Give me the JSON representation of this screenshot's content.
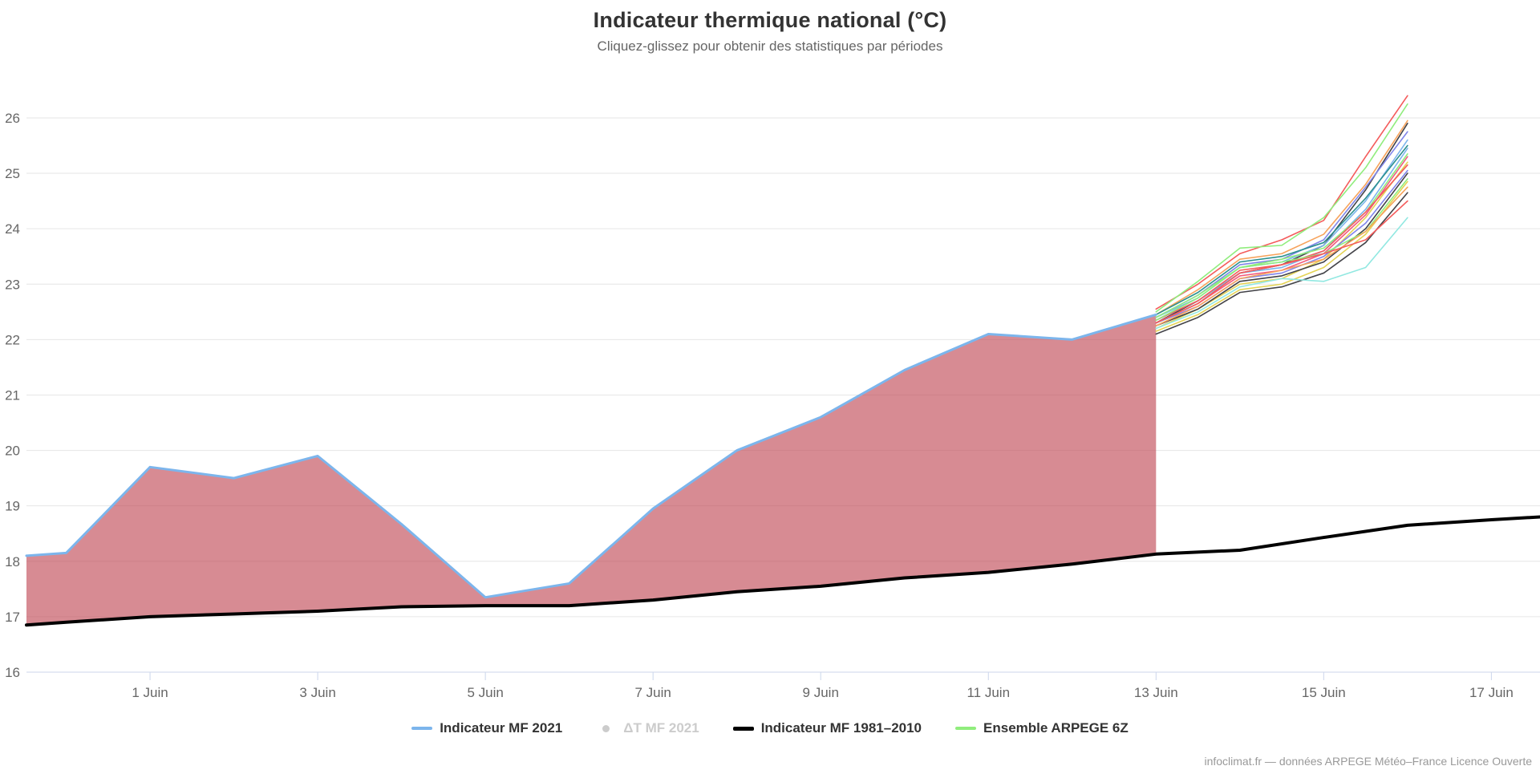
{
  "page": {
    "title": "Indicateur thermique national (°C)",
    "subtitle": "Cliquez-glissez pour obtenir des statistiques par périodes",
    "credit": "infoclimat.fr — données ARPEGE Météo–France Licence Ouverte"
  },
  "legend": {
    "items": [
      {
        "label": "Indicateur MF 2021",
        "color": "#7cb5ec",
        "marker": "line",
        "text_color": "#333333",
        "disabled": false
      },
      {
        "label": "ΔT MF 2021",
        "color": "#cccccc",
        "marker": "dot",
        "text_color": "#cccccc",
        "disabled": true
      },
      {
        "label": "Indicateur MF 1981–2010",
        "color": "#000000",
        "marker": "line-bold",
        "text_color": "#333333",
        "disabled": false
      },
      {
        "label": "Ensemble ARPEGE 6Z",
        "color": "#90ed7d",
        "marker": "line",
        "text_color": "#333333",
        "disabled": false
      }
    ]
  },
  "chart_data": {
    "type": "line",
    "title": "Indicateur thermique national (°C)",
    "subtitle": "Cliquez-glissez pour obtenir des statistiques par périodes",
    "x_axis": {
      "unit": "day of June (0 = 31 Mai)",
      "min_day": -0.474,
      "max_day": 17.58,
      "ticks": [
        {
          "day": 1,
          "label": "1 Juin"
        },
        {
          "day": 3,
          "label": "3 Juin"
        },
        {
          "day": 5,
          "label": "5 Juin"
        },
        {
          "day": 7,
          "label": "7 Juin"
        },
        {
          "day": 9,
          "label": "9 Juin"
        },
        {
          "day": 11,
          "label": "11 Juin"
        },
        {
          "day": 13,
          "label": "13 Juin"
        },
        {
          "day": 15,
          "label": "15 Juin"
        },
        {
          "day": 17,
          "label": "17 Juin"
        }
      ]
    },
    "y_axis": {
      "min": 16,
      "max": 26.853,
      "ticks": [
        16,
        17,
        18,
        19,
        20,
        21,
        22,
        23,
        24,
        25,
        26
      ],
      "gridlines": [
        17,
        18,
        19,
        20,
        21,
        22,
        23,
        24,
        25,
        26
      ],
      "grid_color": "#e6e6e6",
      "axis_line_color": "#ccd6eb",
      "label_color": "#666666"
    },
    "series": [
      {
        "name": "Indicateur MF 2021",
        "color": "#7cb5ec",
        "width": 3,
        "x": [
          -0.474,
          0,
          1,
          2,
          3,
          4,
          5,
          6,
          7,
          8,
          9,
          10,
          11,
          12,
          13
        ],
        "y": [
          18.1,
          18.15,
          19.7,
          19.5,
          19.9,
          18.67,
          17.35,
          17.6,
          18.95,
          20.0,
          20.6,
          21.45,
          22.1,
          22.0,
          22.45
        ]
      },
      {
        "name": "Indicateur MF 1981–2010",
        "color": "#000000",
        "width": 4,
        "x": [
          -0.474,
          0,
          1,
          2,
          3,
          4,
          5,
          6,
          7,
          8,
          9,
          10,
          11,
          12,
          13,
          14,
          15,
          16,
          17,
          17.58
        ],
        "y": [
          16.85,
          16.9,
          17.0,
          17.05,
          17.1,
          17.18,
          17.2,
          17.2,
          17.3,
          17.45,
          17.55,
          17.7,
          17.8,
          17.95,
          18.13,
          18.2,
          18.43,
          18.65,
          18.75,
          18.8
        ]
      }
    ],
    "area_between": {
      "upper": "Indicateur MF 2021",
      "lower": "Indicateur MF 1981–2010",
      "from_day": -0.474,
      "to_day": 13,
      "fill": "rgba(191,72,84,0.63)"
    },
    "ensemble": {
      "name": "Ensemble ARPEGE 6Z",
      "line_width": 1.6,
      "x": [
        13,
        13.5,
        14,
        14.5,
        15,
        15.5,
        16
      ],
      "members": [
        {
          "color": "#f45b5b",
          "values": [
            22.55,
            23.0,
            23.55,
            23.8,
            24.15,
            25.3,
            26.4
          ]
        },
        {
          "color": "#90ed7d",
          "values": [
            22.5,
            23.05,
            23.65,
            23.7,
            24.2,
            25.1,
            26.25
          ]
        },
        {
          "color": "#f7a35c",
          "values": [
            22.45,
            22.9,
            23.45,
            23.55,
            23.9,
            24.8,
            25.95
          ]
        },
        {
          "color": "#434348",
          "values": [
            22.3,
            22.7,
            23.2,
            23.35,
            23.7,
            24.7,
            25.9
          ]
        },
        {
          "color": "#8085e9",
          "values": [
            22.4,
            22.8,
            23.35,
            23.45,
            23.8,
            24.75,
            25.75
          ]
        },
        {
          "color": "#7cb5ec",
          "values": [
            22.4,
            22.75,
            23.3,
            23.4,
            23.7,
            24.5,
            25.6
          ]
        },
        {
          "color": "#2b908f",
          "values": [
            22.45,
            22.85,
            23.4,
            23.5,
            23.75,
            24.55,
            25.5
          ]
        },
        {
          "color": "#7cb5ec",
          "values": [
            22.35,
            22.7,
            23.2,
            23.3,
            23.6,
            24.35,
            25.45
          ]
        },
        {
          "color": "#90ed7d",
          "values": [
            22.4,
            22.8,
            23.3,
            23.45,
            23.65,
            24.3,
            25.35
          ]
        },
        {
          "color": "#f15c80",
          "values": [
            22.3,
            22.65,
            23.15,
            23.25,
            23.55,
            24.25,
            25.3
          ]
        },
        {
          "color": "#e4d354",
          "values": [
            22.2,
            22.55,
            23.0,
            23.1,
            23.45,
            24.2,
            25.2
          ]
        },
        {
          "color": "#f45b5b",
          "values": [
            22.35,
            22.7,
            23.25,
            23.35,
            23.6,
            24.3,
            25.15
          ]
        },
        {
          "color": "#8085e9",
          "values": [
            22.3,
            22.6,
            23.1,
            23.2,
            23.5,
            24.1,
            25.05
          ]
        },
        {
          "color": "#434348",
          "values": [
            22.25,
            22.55,
            23.05,
            23.15,
            23.4,
            24.0,
            25.0
          ]
        },
        {
          "color": "#90ed7d",
          "values": [
            22.35,
            22.75,
            23.3,
            23.4,
            23.55,
            23.95,
            24.9
          ]
        },
        {
          "color": "#e4d354",
          "values": [
            22.15,
            22.45,
            22.9,
            23.0,
            23.3,
            23.9,
            24.85
          ]
        },
        {
          "color": "#f7a35c",
          "values": [
            22.25,
            22.6,
            23.1,
            23.25,
            23.45,
            23.95,
            24.75
          ]
        },
        {
          "color": "#434348",
          "values": [
            22.1,
            22.4,
            22.85,
            22.95,
            23.2,
            23.75,
            24.65
          ]
        },
        {
          "color": "#f45b5b",
          "values": [
            22.3,
            22.65,
            23.2,
            23.35,
            23.55,
            23.8,
            24.5
          ]
        },
        {
          "color": "#91e8e1",
          "values": [
            22.2,
            22.5,
            22.95,
            23.1,
            23.05,
            23.3,
            24.2
          ]
        }
      ]
    },
    "legend_position": "bottom-center",
    "grid": true
  }
}
